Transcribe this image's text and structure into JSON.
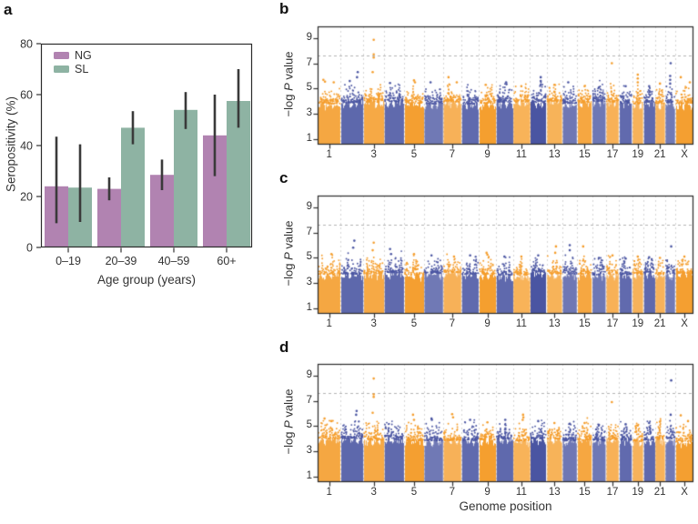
{
  "panels": {
    "a": {
      "label": "a"
    },
    "b": {
      "label": "b"
    },
    "c": {
      "label": "c"
    },
    "d": {
      "label": "d"
    }
  },
  "chart_data": [
    {
      "panel": "a",
      "type": "bar",
      "categories": [
        "0–19",
        "20–39",
        "40–59",
        "60+"
      ],
      "series": [
        {
          "name": "NG",
          "color": "#b183b1",
          "values": [
            24,
            23,
            28.5,
            44
          ],
          "error_low": [
            9.5,
            18.5,
            22.5,
            28
          ],
          "error_high": [
            43.5,
            27.5,
            34.5,
            60
          ]
        },
        {
          "name": "SL",
          "color": "#8eb3a3",
          "values": [
            23.5,
            47,
            54,
            57.5
          ],
          "error_low": [
            10,
            40.5,
            46.5,
            47
          ],
          "error_high": [
            40.5,
            53.5,
            61,
            70
          ]
        }
      ],
      "xlabel": "Age group (years)",
      "ylabel": "Seropositivity (%)",
      "ylim": [
        0,
        80
      ],
      "yticks": [
        0,
        20,
        40,
        60,
        80
      ],
      "error_bar_color": "#3a3a3a",
      "legend_position": "top-left"
    },
    {
      "panel": "b",
      "type": "manhattan",
      "ylabel_pre": "−log ",
      "ylabel_italic": "P",
      "ylabel_post": " value",
      "yticks": [
        1,
        3,
        5,
        7,
        9
      ],
      "ylim": [
        0.6,
        9.9
      ],
      "threshold_line": 7.6,
      "chromosomes": [
        "1",
        "2",
        "3",
        "4",
        "5",
        "6",
        "7",
        "8",
        "9",
        "10",
        "11",
        "12",
        "13",
        "14",
        "15",
        "16",
        "17",
        "18",
        "19",
        "20",
        "21",
        "22",
        "X"
      ],
      "xtick_labels": [
        "1",
        "3",
        "5",
        "7",
        "9",
        "11",
        "13",
        "15",
        "17",
        "19",
        "21",
        "X"
      ],
      "point_colors": {
        "odd_chr": "#f59d2b",
        "even_chr": "#4a55a2"
      },
      "column_top": 3.8,
      "seed": 101,
      "outliers": [
        [
          3,
          8.85,
          0.5
        ],
        [
          3,
          7.7,
          0.5
        ],
        [
          3,
          7.45,
          0.5
        ],
        [
          3,
          6.3,
          0.45
        ],
        [
          1,
          5.7,
          0.25
        ],
        [
          1,
          5.55,
          0.32
        ],
        [
          1,
          5.5,
          0.7
        ],
        [
          2,
          6.3,
          0.75
        ],
        [
          2,
          5.9,
          0.72
        ],
        [
          2,
          5.6,
          0.4
        ],
        [
          4,
          5.45,
          0.3
        ],
        [
          5,
          5.65,
          0.5
        ],
        [
          5,
          5.5,
          0.55
        ],
        [
          6,
          5.5,
          0.35
        ],
        [
          7,
          5.9,
          0.3
        ],
        [
          7,
          5.5,
          0.75
        ],
        [
          9,
          5.3,
          0.4
        ],
        [
          10,
          5.5,
          0.6
        ],
        [
          10,
          5.35,
          0.62
        ],
        [
          11,
          5.2,
          0.5
        ],
        [
          12,
          5.9,
          0.65
        ],
        [
          12,
          5.6,
          0.65
        ],
        [
          12,
          5.3,
          0.65
        ],
        [
          13,
          5.3,
          0.5
        ],
        [
          14,
          5.5,
          0.4
        ],
        [
          15,
          5.2,
          0.5
        ],
        [
          16,
          5.1,
          0.5
        ],
        [
          17,
          7.0,
          0.45
        ],
        [
          18,
          5.2,
          0.5
        ],
        [
          19,
          6.1,
          0.5
        ],
        [
          19,
          5.8,
          0.5
        ],
        [
          19,
          5.5,
          0.5
        ],
        [
          20,
          5.2,
          0.5
        ],
        [
          21,
          5.4,
          0.5
        ],
        [
          22,
          7.0,
          0.55
        ],
        [
          22,
          6.0,
          0.5
        ],
        [
          22,
          5.7,
          0.5
        ],
        [
          22,
          5.4,
          0.5
        ],
        [
          23,
          5.9,
          0.3
        ],
        [
          23,
          5.5,
          0.8
        ]
      ]
    },
    {
      "panel": "c",
      "type": "manhattan",
      "ylabel_pre": "−log ",
      "ylabel_italic": "P",
      "ylabel_post": " value",
      "yticks": [
        1,
        3,
        5,
        7,
        9
      ],
      "ylim": [
        0.6,
        9.9
      ],
      "threshold_line": 7.6,
      "chromosomes": [
        "1",
        "2",
        "3",
        "4",
        "5",
        "6",
        "7",
        "8",
        "9",
        "10",
        "11",
        "12",
        "13",
        "14",
        "15",
        "16",
        "17",
        "18",
        "19",
        "20",
        "21",
        "22",
        "X"
      ],
      "xtick_labels": [
        "1",
        "3",
        "5",
        "7",
        "9",
        "11",
        "13",
        "15",
        "17",
        "19",
        "21",
        "X"
      ],
      "point_colors": {
        "odd_chr": "#f59d2b",
        "even_chr": "#4a55a2"
      },
      "column_top": 3.65,
      "seed": 202,
      "outliers": [
        [
          2,
          6.35,
          0.6
        ],
        [
          2,
          5.8,
          0.55
        ],
        [
          3,
          6.2,
          0.5
        ],
        [
          3,
          5.6,
          0.45
        ],
        [
          1,
          5.3,
          0.6
        ],
        [
          4,
          5.7,
          0.3
        ],
        [
          4,
          5.3,
          0.35
        ],
        [
          5,
          5.3,
          0.5
        ],
        [
          6,
          5.2,
          0.4
        ],
        [
          7,
          5.1,
          0.6
        ],
        [
          8,
          5.2,
          0.5
        ],
        [
          9,
          5.4,
          0.45
        ],
        [
          9,
          5.25,
          0.5
        ],
        [
          10,
          5.1,
          0.5
        ],
        [
          11,
          5.1,
          0.5
        ],
        [
          12,
          5.2,
          0.5
        ],
        [
          13,
          5.9,
          0.6
        ],
        [
          13,
          5.4,
          0.55
        ],
        [
          14,
          6.0,
          0.5
        ],
        [
          14,
          5.6,
          0.5
        ],
        [
          15,
          5.9,
          0.4
        ],
        [
          16,
          5.0,
          0.5
        ],
        [
          17,
          5.2,
          0.5
        ],
        [
          18,
          4.95,
          0.5
        ],
        [
          19,
          5.1,
          0.5
        ],
        [
          20,
          5.05,
          0.5
        ],
        [
          21,
          5.0,
          0.5
        ],
        [
          22,
          5.9,
          0.6
        ],
        [
          23,
          5.1,
          0.5
        ]
      ]
    },
    {
      "panel": "d",
      "type": "manhattan",
      "ylabel_pre": "−log ",
      "ylabel_italic": "P",
      "ylabel_post": " value",
      "xlabel": "Genome position",
      "yticks": [
        1,
        3,
        5,
        7,
        9
      ],
      "ylim": [
        0.6,
        9.9
      ],
      "threshold_line": 7.6,
      "chromosomes": [
        "1",
        "2",
        "3",
        "4",
        "5",
        "6",
        "7",
        "8",
        "9",
        "10",
        "11",
        "12",
        "13",
        "14",
        "15",
        "16",
        "17",
        "18",
        "19",
        "20",
        "21",
        "22",
        "X"
      ],
      "xtick_labels": [
        "1",
        "3",
        "5",
        "7",
        "9",
        "11",
        "13",
        "15",
        "17",
        "19",
        "21",
        "X"
      ],
      "point_colors": {
        "odd_chr": "#f59d2b",
        "even_chr": "#4a55a2"
      },
      "column_top": 3.8,
      "seed": 303,
      "outliers": [
        [
          3,
          8.75,
          0.5
        ],
        [
          3,
          7.5,
          0.5
        ],
        [
          3,
          7.3,
          0.5
        ],
        [
          3,
          6.05,
          0.45
        ],
        [
          22,
          8.6,
          0.6
        ],
        [
          17,
          6.9,
          0.45
        ],
        [
          2,
          6.2,
          0.7
        ],
        [
          2,
          5.9,
          0.68
        ],
        [
          1,
          5.6,
          0.3
        ],
        [
          1,
          5.4,
          0.6
        ],
        [
          5,
          5.9,
          0.45
        ],
        [
          5,
          5.5,
          0.5
        ],
        [
          6,
          5.6,
          0.4
        ],
        [
          6,
          5.5,
          0.42
        ],
        [
          7,
          5.95,
          0.5
        ],
        [
          7,
          5.7,
          0.55
        ],
        [
          8,
          5.5,
          0.5
        ],
        [
          9,
          5.3,
          0.5
        ],
        [
          10,
          5.5,
          0.55
        ],
        [
          11,
          5.9,
          0.6
        ],
        [
          11,
          5.7,
          0.62
        ],
        [
          11,
          5.5,
          0.58
        ],
        [
          12,
          5.4,
          0.5
        ],
        [
          13,
          5.25,
          0.5
        ],
        [
          14,
          5.2,
          0.5
        ],
        [
          15,
          5.25,
          0.5
        ],
        [
          16,
          5.1,
          0.5
        ],
        [
          18,
          5.15,
          0.5
        ],
        [
          19,
          5.05,
          0.5
        ],
        [
          20,
          5.25,
          0.5
        ],
        [
          21,
          5.35,
          0.5
        ],
        [
          22,
          5.9,
          0.55
        ],
        [
          23,
          5.85,
          0.3
        ],
        [
          23,
          5.4,
          0.7
        ]
      ]
    }
  ]
}
